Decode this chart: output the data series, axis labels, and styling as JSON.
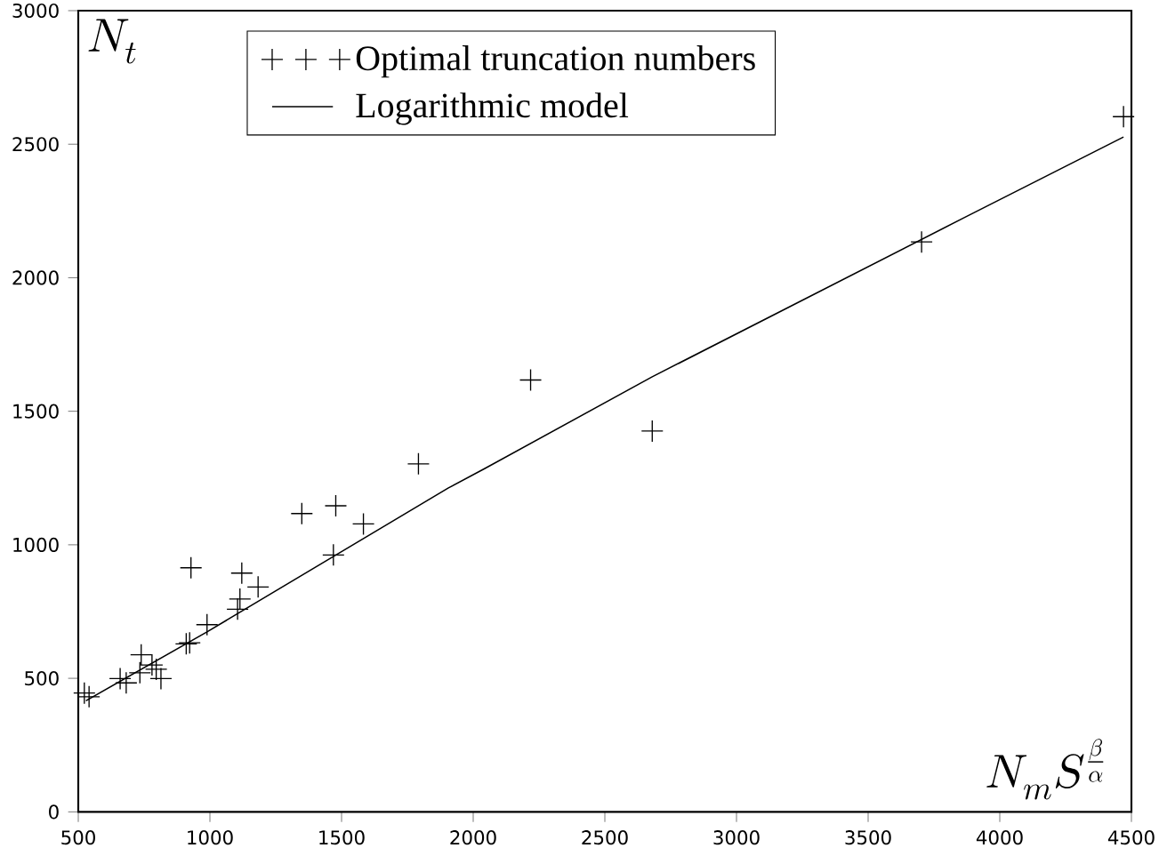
{
  "chart_data": {
    "type": "scatter",
    "xlabel": "N_mS^{\\frac{\\beta}{\\alpha}}",
    "ylabel": "N_t",
    "xlim": [
      500,
      4500
    ],
    "ylim": [
      0,
      3000
    ],
    "xticks": [
      500,
      1000,
      1500,
      2000,
      2500,
      3000,
      3500,
      4000,
      4500
    ],
    "yticks": [
      0,
      500,
      1000,
      1500,
      2000,
      2500,
      3000
    ],
    "grid": false,
    "legend": "top",
    "series": [
      {
        "name": "Optimal truncation numbers",
        "marker": "cross",
        "color": "#000000",
        "x": [
          523,
          541,
          659,
          682,
          739,
          734,
          780,
          796,
          814,
          910,
          923,
          928,
          989,
          1105,
          1114,
          1121,
          1183,
          1349,
          1469,
          1478,
          1583,
          1792,
          2218,
          2680,
          3703,
          4470
        ],
        "values": [
          445,
          431,
          499,
          483,
          588,
          521,
          550,
          534,
          499,
          629,
          633,
          914,
          701,
          759,
          797,
          894,
          842,
          1117,
          962,
          1146,
          1078,
          1303,
          1617,
          1426,
          2134,
          2603
        ]
      },
      {
        "name": "Logarithmic model",
        "type": "line",
        "line_style": "solid",
        "color": "#000000",
        "x": [
          529,
          989,
          1906,
          2043,
          2680,
          3863,
          4470
        ],
        "values": [
          416,
          674,
          1213,
          1285,
          1629,
          2224,
          2527
        ]
      }
    ]
  }
}
